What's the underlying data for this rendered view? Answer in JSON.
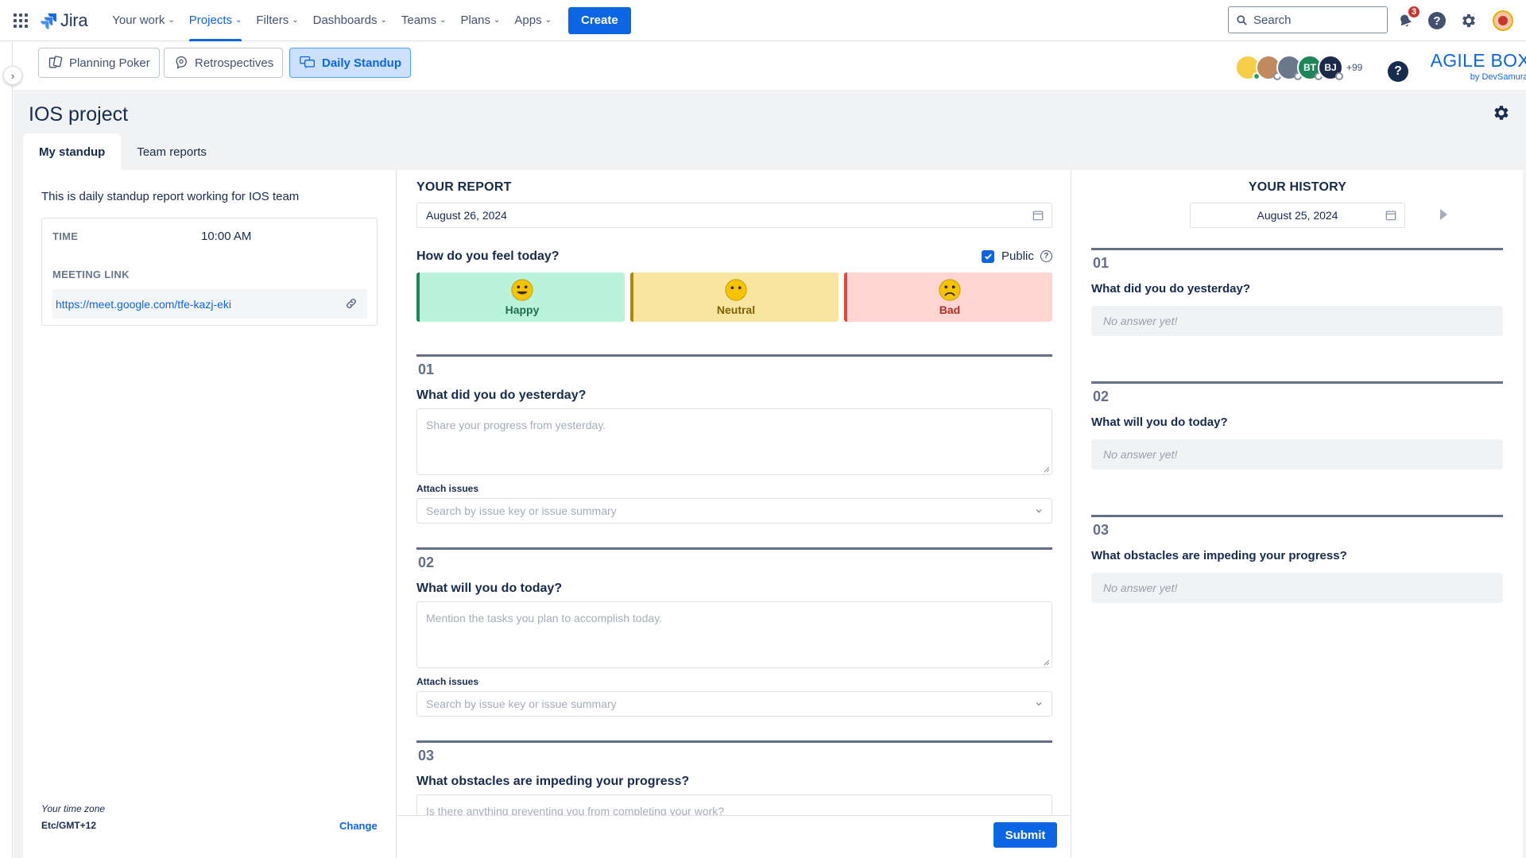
{
  "topnav": {
    "logo": "Jira",
    "items": [
      {
        "label": "Your work"
      },
      {
        "label": "Projects"
      },
      {
        "label": "Filters"
      },
      {
        "label": "Dashboards"
      },
      {
        "label": "Teams"
      },
      {
        "label": "Plans"
      },
      {
        "label": "Apps"
      }
    ],
    "active_item": "Projects",
    "create_label": "Create",
    "search_placeholder": "Search",
    "notification_count": "3"
  },
  "apps_bar": {
    "tabs": [
      {
        "label": "Planning Poker",
        "icon": "cards-icon"
      },
      {
        "label": "Retrospectives",
        "icon": "retro-icon"
      },
      {
        "label": "Daily Standup",
        "icon": "chat-icon"
      }
    ],
    "active_tab": "Daily Standup",
    "avatars": [
      {
        "initials": "",
        "color": "#f5cd47",
        "status": "#22a06b"
      },
      {
        "initials": "",
        "color": "#8f7ee7",
        "status": "#ffffff"
      },
      {
        "initials": "",
        "color": "#6b778c",
        "status": "#ffffff"
      },
      {
        "initials": "BT",
        "color": "#1f845a",
        "status": "#ffffff"
      },
      {
        "initials": "BJ",
        "color": "#1d2a4a",
        "status": "#ffffff"
      }
    ],
    "avatar_more": "+99",
    "brand_title": "AGILE BOX",
    "brand_sub": "by DevSamurai"
  },
  "page": {
    "project_title": "IOS project",
    "tabs": [
      "My standup",
      "Team reports"
    ],
    "active_tab": "My standup"
  },
  "left": {
    "description": "This is daily standup report working for IOS team",
    "time_label": "TIME",
    "time_value": "10:00 AM",
    "meeting_label": "MEETING LINK",
    "meeting_link": "https://meet.google.com/tfe-kazj-eki",
    "tz_label": "Your time zone",
    "tz_value": "Etc/GMT+12",
    "tz_change": "Change"
  },
  "report": {
    "title": "YOUR REPORT",
    "date": "August 26, 2024",
    "feel_question": "How do you feel today?",
    "public_label": "Public",
    "public_checked": true,
    "moods": [
      {
        "label": "Happy",
        "icon": "happy-face-icon"
      },
      {
        "label": "Neutral",
        "icon": "neutral-face-icon"
      },
      {
        "label": "Bad",
        "icon": "sad-face-icon"
      }
    ],
    "questions": [
      {
        "num": "01",
        "title": "What did you do yesterday?",
        "placeholder": "Share your progress from yesterday.",
        "attach_label": "Attach issues",
        "attach_placeholder": "Search by issue key or issue summary"
      },
      {
        "num": "02",
        "title": "What will you do today?",
        "placeholder": "Mention the tasks you plan to accomplish today.",
        "attach_label": "Attach issues",
        "attach_placeholder": "Search by issue key or issue summary"
      },
      {
        "num": "03",
        "title": "What obstacles are impeding your progress?",
        "placeholder": "Is there anything preventing you from completing your work?"
      }
    ],
    "submit_label": "Submit"
  },
  "history": {
    "title": "YOUR HISTORY",
    "date": "August 25, 2024",
    "items": [
      {
        "num": "01",
        "title": "What did you do yesterday?",
        "answer": "No answer yet!"
      },
      {
        "num": "02",
        "title": "What will you do today?",
        "answer": "No answer yet!"
      },
      {
        "num": "03",
        "title": "What obstacles are impeding your progress?",
        "answer": "No answer yet!"
      }
    ]
  },
  "colors": {
    "accent": "#0c66e4",
    "happy": "#baf3db",
    "neutral": "#f8e6a0",
    "bad": "#ffd5d2"
  }
}
